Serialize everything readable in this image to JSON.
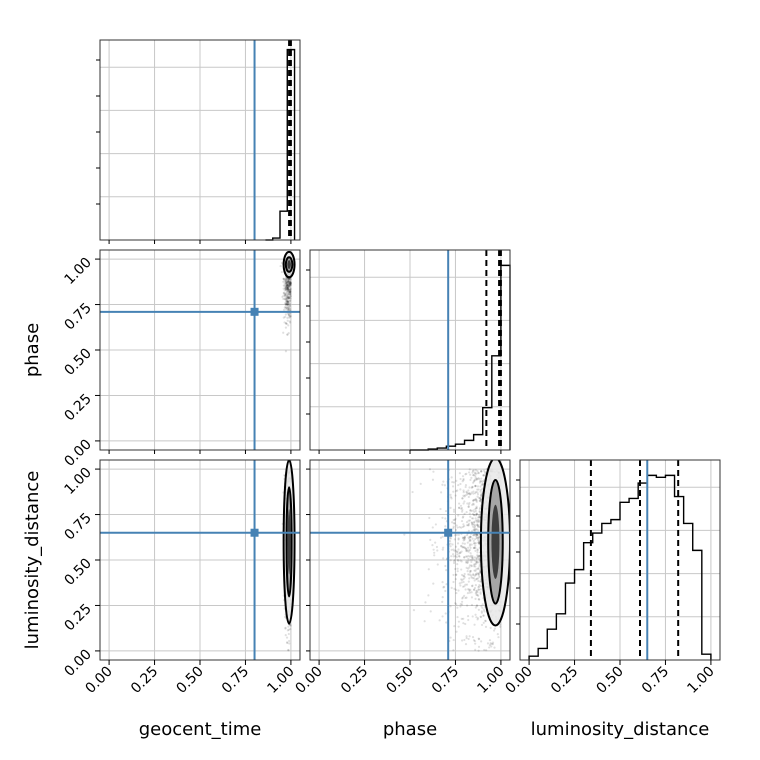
{
  "chart_data": {
    "type": "corner",
    "parameters": [
      "geocent_time",
      "phase",
      "luminosity_distance"
    ],
    "truths": [
      0.8,
      0.71,
      0.65
    ],
    "truth_color": "#4682b4",
    "tick_values": [
      0.0,
      0.25,
      0.5,
      0.75,
      1.0
    ],
    "tick_labels": [
      "0.00",
      "0.25",
      "0.50",
      "0.75",
      "1.00"
    ],
    "axis_range": [
      -0.05,
      1.05
    ],
    "grid": true,
    "marginals": [
      {
        "parameter": "geocent_time",
        "hist_type": "step",
        "bin_edges": [
          0.86,
          0.9,
          0.94,
          0.98,
          1.02
        ],
        "counts": [
          0.0,
          0.01,
          0.15,
          0.99
        ],
        "quantiles": [
          0.99,
          0.995,
          1.0
        ]
      },
      {
        "parameter": "phase",
        "hist_type": "step",
        "bin_edges": [
          0.5,
          0.6,
          0.65,
          0.7,
          0.75,
          0.8,
          0.85,
          0.9,
          0.95,
          1.0,
          1.05
        ],
        "counts": [
          0.0,
          0.005,
          0.01,
          0.02,
          0.03,
          0.05,
          0.08,
          0.22,
          0.49,
          0.96
        ],
        "quantiles": [
          0.92,
          0.99,
          1.0
        ]
      },
      {
        "parameter": "luminosity_distance",
        "hist_type": "step",
        "bin_edges": [
          0.0,
          0.05,
          0.1,
          0.15,
          0.2,
          0.25,
          0.3,
          0.35,
          0.4,
          0.45,
          0.5,
          0.55,
          0.6,
          0.65,
          0.7,
          0.75,
          0.8,
          0.85,
          0.9,
          0.95,
          1.0
        ],
        "counts": [
          0.02,
          0.06,
          0.16,
          0.24,
          0.4,
          0.47,
          0.61,
          0.66,
          0.71,
          0.73,
          0.82,
          0.84,
          0.92,
          0.96,
          0.95,
          0.96,
          0.85,
          0.71,
          0.57,
          0.03
        ],
        "quantiles": [
          0.34,
          0.61,
          0.82
        ]
      }
    ],
    "joint_panels": [
      {
        "x_parameter": "geocent_time",
        "y_parameter": "phase",
        "scatter_center": [
          0.985,
          0.9
        ],
        "scatter_spread": [
          0.012,
          0.12
        ],
        "scatter_points": 500,
        "contour_center": [
          0.99,
          0.97
        ],
        "contour_half_widths": [
          [
            0.03,
            0.07
          ],
          [
            0.018,
            0.04
          ]
        ]
      },
      {
        "x_parameter": "geocent_time",
        "y_parameter": "luminosity_distance",
        "scatter_center": [
          0.985,
          0.6
        ],
        "scatter_spread": [
          0.01,
          0.25
        ],
        "scatter_points": 500,
        "contour_center": [
          0.99,
          0.6
        ],
        "contour_half_widths": [
          [
            0.03,
            0.45
          ],
          [
            0.014,
            0.3
          ]
        ]
      },
      {
        "x_parameter": "phase",
        "y_parameter": "luminosity_distance",
        "scatter_center": [
          0.92,
          0.6
        ],
        "scatter_spread": [
          0.12,
          0.25
        ],
        "scatter_points": 1400,
        "contour_center": [
          0.97,
          0.6
        ],
        "contour_half_widths": [
          [
            0.08,
            0.46
          ],
          [
            0.04,
            0.34
          ]
        ]
      }
    ]
  }
}
